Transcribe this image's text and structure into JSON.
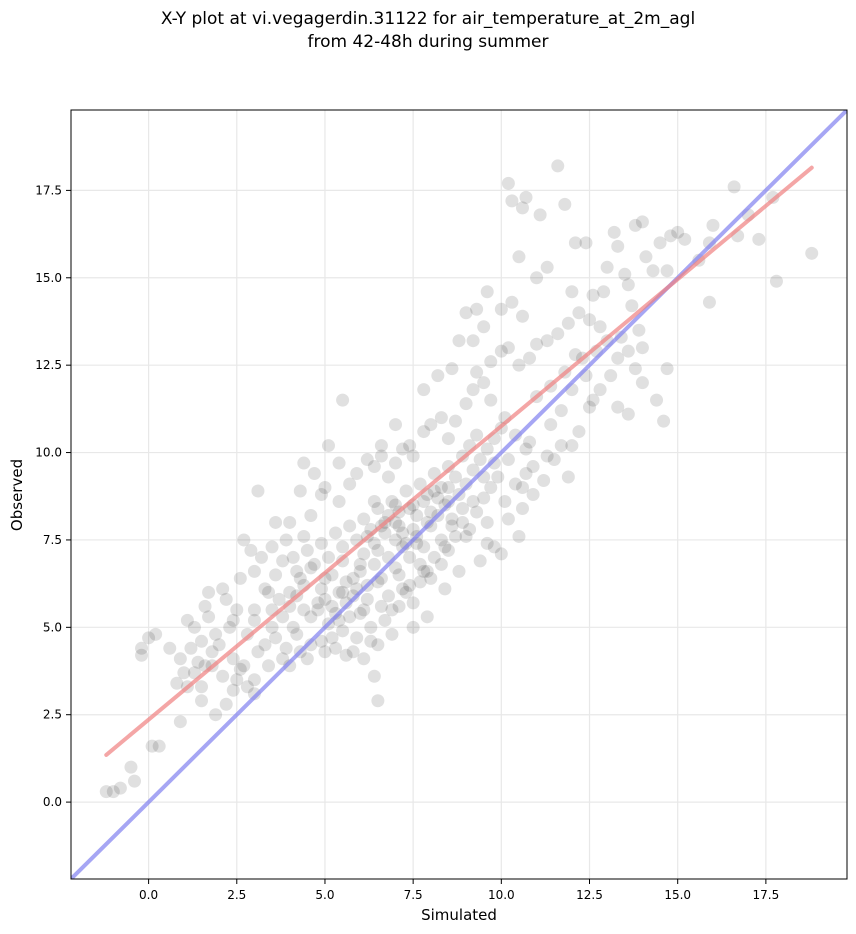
{
  "chart_data": {
    "type": "scatter",
    "title_lines": [
      "X-Y plot at vi.vegagerdin.31122 for air_temperature_at_2m_agl",
      "from 42-48h during summer"
    ],
    "xlabel": "Simulated",
    "ylabel": "Observed",
    "xlim": [
      -2.2,
      19.8
    ],
    "ylim": [
      -2.2,
      19.8
    ],
    "xticks": [
      0.0,
      2.5,
      5.0,
      7.5,
      10.0,
      12.5,
      15.0,
      17.5
    ],
    "xtick_labels": [
      "0.0",
      "2.5",
      "5.0",
      "7.5",
      "10.0",
      "12.5",
      "15.0",
      "17.5"
    ],
    "yticks": [
      0.0,
      2.5,
      5.0,
      7.5,
      10.0,
      12.5,
      15.0,
      17.5
    ],
    "ytick_labels": [
      "0.0",
      "2.5",
      "5.0",
      "7.5",
      "10.0",
      "12.5",
      "15.0",
      "17.5"
    ],
    "grid": true,
    "marker_color": "#000000",
    "fit_line": {
      "color": "#f08080",
      "points": [
        [
          -1.2,
          1.35
        ],
        [
          18.8,
          18.15
        ]
      ]
    },
    "identity_line": {
      "color": "#8080f0",
      "points": [
        [
          -2.2,
          -2.2
        ],
        [
          19.8,
          19.8
        ]
      ]
    },
    "points": [
      [
        -1.2,
        0.3
      ],
      [
        -1.0,
        0.3
      ],
      [
        -0.8,
        0.4
      ],
      [
        -0.5,
        1.0
      ],
      [
        -0.4,
        0.6
      ],
      [
        -0.2,
        4.2
      ],
      [
        -0.2,
        4.4
      ],
      [
        0.0,
        4.7
      ],
      [
        0.2,
        4.8
      ],
      [
        0.1,
        1.6
      ],
      [
        0.3,
        1.6
      ],
      [
        0.6,
        4.4
      ],
      [
        0.9,
        4.1
      ],
      [
        0.9,
        2.3
      ],
      [
        1.1,
        3.3
      ],
      [
        1.3,
        3.7
      ],
      [
        1.1,
        5.2
      ],
      [
        1.5,
        3.3
      ],
      [
        1.6,
        3.9
      ],
      [
        1.8,
        3.9
      ],
      [
        1.9,
        2.5
      ],
      [
        1.7,
        6.0
      ],
      [
        2.2,
        2.8
      ],
      [
        2.4,
        3.2
      ],
      [
        2.6,
        3.8
      ],
      [
        2.8,
        3.3
      ],
      [
        2.7,
        7.5
      ],
      [
        3.1,
        8.9
      ],
      [
        3.0,
        3.1
      ],
      [
        3.5,
        5.5
      ],
      [
        3.9,
        4.4
      ],
      [
        4.2,
        4.8
      ],
      [
        4.3,
        8.9
      ],
      [
        4.4,
        9.7
      ],
      [
        4.7,
        9.4
      ],
      [
        5.1,
        10.2
      ],
      [
        5.4,
        9.7
      ],
      [
        5.5,
        11.5
      ],
      [
        5.6,
        4.2
      ],
      [
        6.1,
        4.1
      ],
      [
        6.4,
        3.6
      ],
      [
        6.5,
        2.9
      ],
      [
        6.6,
        10.2
      ],
      [
        7.0,
        10.8
      ],
      [
        7.4,
        10.2
      ],
      [
        7.8,
        11.8
      ],
      [
        8.2,
        12.2
      ],
      [
        8.6,
        12.4
      ],
      [
        8.8,
        13.2
      ],
      [
        9.0,
        14.0
      ],
      [
        9.3,
        14.1
      ],
      [
        9.5,
        13.6
      ],
      [
        9.6,
        14.6
      ],
      [
        9.2,
        13.2
      ],
      [
        10.0,
        14.1
      ],
      [
        10.3,
        14.3
      ],
      [
        10.6,
        13.9
      ],
      [
        10.0,
        7.1
      ],
      [
        10.5,
        7.6
      ],
      [
        10.6,
        8.4
      ],
      [
        10.6,
        9.0
      ],
      [
        10.9,
        9.6
      ],
      [
        11.2,
        9.2
      ],
      [
        11.3,
        9.9
      ],
      [
        11.7,
        10.2
      ],
      [
        11.9,
        9.3
      ],
      [
        12.2,
        10.6
      ],
      [
        12.3,
        12.7
      ],
      [
        12.6,
        11.5
      ],
      [
        12.8,
        11.8
      ],
      [
        13.1,
        12.2
      ],
      [
        13.3,
        11.3
      ],
      [
        13.6,
        11.1
      ],
      [
        13.8,
        12.4
      ],
      [
        14.0,
        12.0
      ],
      [
        14.4,
        11.5
      ],
      [
        14.6,
        10.9
      ],
      [
        14.7,
        12.4
      ],
      [
        10.2,
        17.7
      ],
      [
        10.3,
        17.2
      ],
      [
        10.6,
        17.0
      ],
      [
        10.7,
        17.3
      ],
      [
        11.1,
        16.8
      ],
      [
        11.6,
        18.2
      ],
      [
        11.8,
        17.1
      ],
      [
        12.1,
        16.0
      ],
      [
        12.4,
        16.0
      ],
      [
        10.5,
        15.6
      ],
      [
        11.0,
        15.0
      ],
      [
        11.3,
        15.3
      ],
      [
        12.0,
        14.6
      ],
      [
        12.6,
        14.5
      ],
      [
        13.0,
        15.3
      ],
      [
        13.2,
        16.3
      ],
      [
        13.3,
        15.9
      ],
      [
        13.5,
        15.1
      ],
      [
        13.6,
        14.8
      ],
      [
        13.7,
        14.2
      ],
      [
        13.8,
        16.5
      ],
      [
        14.0,
        16.6
      ],
      [
        14.1,
        15.6
      ],
      [
        14.3,
        15.2
      ],
      [
        14.5,
        16.0
      ],
      [
        14.8,
        16.2
      ],
      [
        15.0,
        16.3
      ],
      [
        15.2,
        16.1
      ],
      [
        15.6,
        15.5
      ],
      [
        15.9,
        16.0
      ],
      [
        16.0,
        16.5
      ],
      [
        15.9,
        14.3
      ],
      [
        16.6,
        17.6
      ],
      [
        16.7,
        16.2
      ],
      [
        17.0,
        16.8
      ],
      [
        17.3,
        16.1
      ],
      [
        17.7,
        17.3
      ],
      [
        17.8,
        14.9
      ],
      [
        18.8,
        15.7
      ],
      [
        12.9,
        14.6
      ],
      [
        14.7,
        15.2
      ],
      [
        13.4,
        13.3
      ],
      [
        14.0,
        13.0
      ],
      [
        3.2,
        7.0
      ],
      [
        3.6,
        8.0
      ],
      [
        3.9,
        7.5
      ],
      [
        4.0,
        8.0
      ],
      [
        4.1,
        7.0
      ],
      [
        4.4,
        7.6
      ],
      [
        4.6,
        8.2
      ],
      [
        4.9,
        8.8
      ],
      [
        5.0,
        9.0
      ],
      [
        5.4,
        8.6
      ],
      [
        5.7,
        9.1
      ],
      [
        5.9,
        9.4
      ],
      [
        6.2,
        9.8
      ],
      [
        6.4,
        9.6
      ],
      [
        6.6,
        9.9
      ],
      [
        6.8,
        9.3
      ],
      [
        7.0,
        9.7
      ],
      [
        7.2,
        10.1
      ],
      [
        7.5,
        9.9
      ],
      [
        7.8,
        10.6
      ],
      [
        8.0,
        10.8
      ],
      [
        8.3,
        11.0
      ],
      [
        8.5,
        10.4
      ],
      [
        8.7,
        10.9
      ],
      [
        9.0,
        11.4
      ],
      [
        9.2,
        11.8
      ],
      [
        9.5,
        12.0
      ],
      [
        9.7,
        12.6
      ],
      [
        10.0,
        12.9
      ],
      [
        10.2,
        13.0
      ],
      [
        10.5,
        12.5
      ],
      [
        10.8,
        12.7
      ],
      [
        11.0,
        13.1
      ],
      [
        11.3,
        13.2
      ],
      [
        11.6,
        13.4
      ],
      [
        11.9,
        13.7
      ],
      [
        12.2,
        14.0
      ],
      [
        12.5,
        13.8
      ],
      [
        12.8,
        13.6
      ],
      [
        13.0,
        13.2
      ],
      [
        13.3,
        12.7
      ],
      [
        13.6,
        12.9
      ],
      [
        13.9,
        13.5
      ],
      [
        9.3,
        12.3
      ],
      [
        9.7,
        11.5
      ],
      [
        10.1,
        11.0
      ],
      [
        10.4,
        10.5
      ],
      [
        10.7,
        10.1
      ],
      [
        11.0,
        11.6
      ],
      [
        11.4,
        11.9
      ],
      [
        11.8,
        12.3
      ],
      [
        12.1,
        12.8
      ],
      [
        12.4,
        12.2
      ],
      [
        12.7,
        12.9
      ],
      [
        10.2,
        9.8
      ],
      [
        10.8,
        10.3
      ],
      [
        11.4,
        10.8
      ],
      [
        11.7,
        11.2
      ],
      [
        12.0,
        11.8
      ],
      [
        12.5,
        11.3
      ],
      [
        9.6,
        8.0
      ],
      [
        9.8,
        7.3
      ],
      [
        10.1,
        8.6
      ],
      [
        10.4,
        9.1
      ],
      [
        10.7,
        9.4
      ],
      [
        2.0,
        4.5
      ],
      [
        2.3,
        5.0
      ],
      [
        2.5,
        5.5
      ],
      [
        2.8,
        4.8
      ],
      [
        3.0,
        5.2
      ],
      [
        3.3,
        4.5
      ],
      [
        3.5,
        5.0
      ],
      [
        3.7,
        5.8
      ],
      [
        2.1,
        6.1
      ],
      [
        2.6,
        6.4
      ],
      [
        3.0,
        6.6
      ],
      [
        3.3,
        6.1
      ],
      [
        3.6,
        6.5
      ],
      [
        3.8,
        6.9
      ],
      [
        4.0,
        5.6
      ],
      [
        4.2,
        5.9
      ],
      [
        4.4,
        6.2
      ],
      [
        4.6,
        5.3
      ],
      [
        4.8,
        5.7
      ],
      [
        4.9,
        4.6
      ],
      [
        5.1,
        5.1
      ],
      [
        5.3,
        4.4
      ],
      [
        5.5,
        4.9
      ],
      [
        5.7,
        5.3
      ],
      [
        5.9,
        4.7
      ],
      [
        6.1,
        5.5
      ],
      [
        6.3,
        5.0
      ],
      [
        6.5,
        4.5
      ],
      [
        6.7,
        5.2
      ],
      [
        6.9,
        4.8
      ],
      [
        7.1,
        5.6
      ],
      [
        7.3,
        6.0
      ],
      [
        7.5,
        5.7
      ],
      [
        7.7,
        6.3
      ],
      [
        7.9,
        6.6
      ],
      [
        8.1,
        7.0
      ],
      [
        8.3,
        6.8
      ],
      [
        8.5,
        7.2
      ],
      [
        8.7,
        7.6
      ],
      [
        8.9,
        8.0
      ],
      [
        9.1,
        7.8
      ],
      [
        9.3,
        8.3
      ],
      [
        9.5,
        8.7
      ],
      [
        9.7,
        9.0
      ],
      [
        9.9,
        9.3
      ],
      [
        1.3,
        5.0
      ],
      [
        1.5,
        4.6
      ],
      [
        1.7,
        5.3
      ],
      [
        1.9,
        4.8
      ],
      [
        2.2,
        5.8
      ],
      [
        1.4,
        4.0
      ],
      [
        1.8,
        4.3
      ],
      [
        2.1,
        3.6
      ],
      [
        2.4,
        4.1
      ],
      [
        2.7,
        3.9
      ],
      [
        3.1,
        4.3
      ],
      [
        3.4,
        3.9
      ],
      [
        3.8,
        4.1
      ],
      [
        4.3,
        4.3
      ],
      [
        4.6,
        4.5
      ],
      [
        5.0,
        4.3
      ],
      [
        5.2,
        5.6
      ],
      [
        5.4,
        6.0
      ],
      [
        5.6,
        6.3
      ],
      [
        5.8,
        5.9
      ],
      [
        6.0,
        6.6
      ],
      [
        6.2,
        6.2
      ],
      [
        6.4,
        6.8
      ],
      [
        6.6,
        6.4
      ],
      [
        6.8,
        7.0
      ],
      [
        7.0,
        6.7
      ],
      [
        7.2,
        7.3
      ],
      [
        7.4,
        7.0
      ],
      [
        7.6,
        7.6
      ],
      [
        7.8,
        7.3
      ],
      [
        8.0,
        7.9
      ],
      [
        8.2,
        8.2
      ],
      [
        8.4,
        8.5
      ],
      [
        8.6,
        8.1
      ],
      [
        8.8,
        8.8
      ],
      [
        9.0,
        9.1
      ],
      [
        9.2,
        9.5
      ],
      [
        9.4,
        9.8
      ],
      [
        9.6,
        10.1
      ],
      [
        9.8,
        10.4
      ],
      [
        10.0,
        10.7
      ],
      [
        4.5,
        7.2
      ],
      [
        4.7,
        6.8
      ],
      [
        4.9,
        7.4
      ],
      [
        5.1,
        7.0
      ],
      [
        5.3,
        7.7
      ],
      [
        5.5,
        7.3
      ],
      [
        5.7,
        7.9
      ],
      [
        5.9,
        7.5
      ],
      [
        6.1,
        8.1
      ],
      [
        6.3,
        7.8
      ],
      [
        6.5,
        8.4
      ],
      [
        6.7,
        8.0
      ],
      [
        6.9,
        8.6
      ],
      [
        7.1,
        8.3
      ],
      [
        7.3,
        8.9
      ],
      [
        7.5,
        8.5
      ],
      [
        7.7,
        9.1
      ],
      [
        7.9,
        8.8
      ],
      [
        8.1,
        9.4
      ],
      [
        8.3,
        9.0
      ],
      [
        8.5,
        9.6
      ],
      [
        8.7,
        9.3
      ],
      [
        8.9,
        9.9
      ],
      [
        9.1,
        10.2
      ],
      [
        9.3,
        10.5
      ],
      [
        4.0,
        6.0
      ],
      [
        4.3,
        6.4
      ],
      [
        4.6,
        6.7
      ],
      [
        4.9,
        6.1
      ],
      [
        5.2,
        6.5
      ],
      [
        5.5,
        6.9
      ],
      [
        5.8,
        6.4
      ],
      [
        6.1,
        7.1
      ],
      [
        6.4,
        7.4
      ],
      [
        6.7,
        7.7
      ],
      [
        7.0,
        8.0
      ],
      [
        7.3,
        7.4
      ],
      [
        7.6,
        8.2
      ],
      [
        7.9,
        8.0
      ],
      [
        8.2,
        8.7
      ],
      [
        8.5,
        9.0
      ],
      [
        5.0,
        5.8
      ],
      [
        5.3,
        5.4
      ],
      [
        5.6,
        5.7
      ],
      [
        5.9,
        6.1
      ],
      [
        6.2,
        5.8
      ],
      [
        6.5,
        6.3
      ],
      [
        6.8,
        5.9
      ],
      [
        7.1,
        6.5
      ],
      [
        7.4,
        6.2
      ],
      [
        7.7,
        6.8
      ],
      [
        8.0,
        6.4
      ],
      [
        8.3,
        7.5
      ],
      [
        8.6,
        7.9
      ],
      [
        8.9,
        8.4
      ],
      [
        9.2,
        8.6
      ],
      [
        9.5,
        9.3
      ],
      [
        9.8,
        9.7
      ],
      [
        4.8,
        5.5
      ],
      [
        5.4,
        5.2
      ],
      [
        6.0,
        5.4
      ],
      [
        6.6,
        5.6
      ],
      [
        7.2,
        6.1
      ],
      [
        7.8,
        6.6
      ],
      [
        8.4,
        7.3
      ],
      [
        9.0,
        7.6
      ],
      [
        5.0,
        6.4
      ],
      [
        5.5,
        6.0
      ],
      [
        6.0,
        6.8
      ],
      [
        6.5,
        7.2
      ],
      [
        7.0,
        7.5
      ],
      [
        7.5,
        7.8
      ],
      [
        8.0,
        8.3
      ],
      [
        8.5,
        8.6
      ],
      [
        6.2,
        7.6
      ],
      [
        6.6,
        7.9
      ],
      [
        7.1,
        7.9
      ],
      [
        7.4,
        8.4
      ],
      [
        6.8,
        8.2
      ],
      [
        7.2,
        7.7
      ],
      [
        7.6,
        7.4
      ],
      [
        6.4,
        8.6
      ],
      [
        7.0,
        8.5
      ],
      [
        7.8,
        8.6
      ],
      [
        8.1,
        8.9
      ],
      [
        3.0,
        5.5
      ],
      [
        3.4,
        6.0
      ],
      [
        3.8,
        5.3
      ],
      [
        4.1,
        5.0
      ],
      [
        4.4,
        5.5
      ],
      [
        2.9,
        7.2
      ],
      [
        3.5,
        7.3
      ],
      [
        4.2,
        6.6
      ],
      [
        2.4,
        5.2
      ],
      [
        1.6,
        5.6
      ],
      [
        1.0,
        3.7
      ],
      [
        1.2,
        4.4
      ],
      [
        0.8,
        3.4
      ],
      [
        1.5,
        2.9
      ],
      [
        2.5,
        3.5
      ],
      [
        3.0,
        3.5
      ],
      [
        3.6,
        4.7
      ],
      [
        4.0,
        3.9
      ],
      [
        4.5,
        4.1
      ],
      [
        5.2,
        4.7
      ],
      [
        5.8,
        4.3
      ],
      [
        6.3,
        4.6
      ],
      [
        6.9,
        5.5
      ],
      [
        7.5,
        5.0
      ],
      [
        7.9,
        5.3
      ],
      [
        8.4,
        6.1
      ],
      [
        8.8,
        6.6
      ],
      [
        9.4,
        6.9
      ],
      [
        9.6,
        7.4
      ],
      [
        10.2,
        8.1
      ],
      [
        10.9,
        8.8
      ],
      [
        11.5,
        9.8
      ],
      [
        12.0,
        10.2
      ]
    ]
  }
}
